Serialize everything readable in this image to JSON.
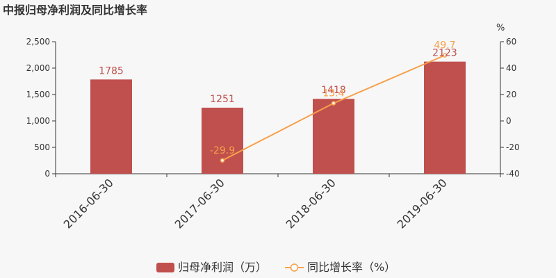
{
  "chart_data": {
    "type": "bar",
    "title": "中报归母净利润及同比增长率",
    "categories": [
      "2016-06-30",
      "2017-06-30",
      "2018-06-30",
      "2019-06-30"
    ],
    "series": [
      {
        "name": "归母净利润（万）",
        "type": "bar",
        "axis": "left",
        "values": [
          1785,
          1251,
          1418,
          2123
        ],
        "labels": [
          "1785",
          "1251",
          "1418",
          "2123"
        ],
        "color": "#c0504d"
      },
      {
        "name": "同比增长率（%）",
        "type": "line",
        "axis": "right",
        "values": [
          null,
          -29.9,
          13.4,
          49.7
        ],
        "labels": [
          "",
          "-29.9",
          "13.4",
          "49.7"
        ],
        "color": "#f6a04b"
      }
    ],
    "left_axis": {
      "range": [
        0,
        2500
      ],
      "ticks": [
        0,
        500,
        1000,
        1500,
        2000,
        2500
      ],
      "tick_labels": [
        "0",
        "500",
        "1,000",
        "1,500",
        "2,000",
        "2,500"
      ]
    },
    "right_axis": {
      "unit": "%",
      "range": [
        -40,
        60
      ],
      "ticks": [
        -40,
        -20,
        0,
        20,
        40,
        60
      ],
      "tick_labels": [
        "-40",
        "-20",
        "0",
        "20",
        "40",
        "60"
      ]
    },
    "grid": false,
    "legend_position": "bottom-center"
  }
}
